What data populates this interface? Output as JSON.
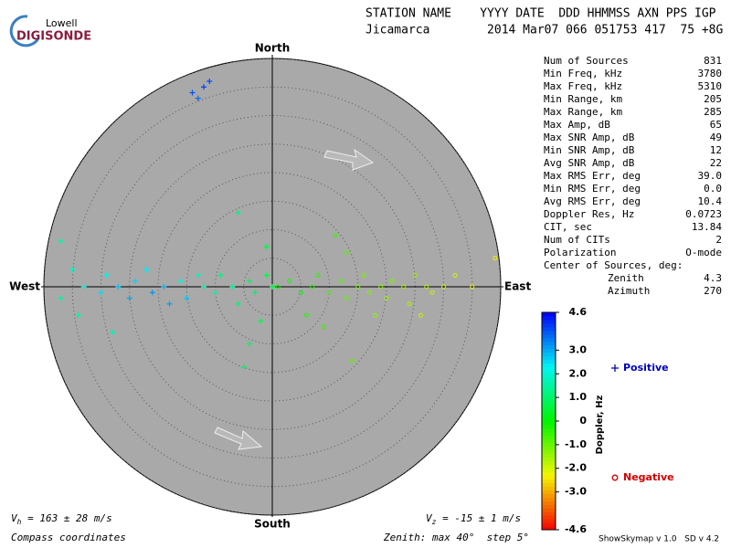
{
  "header": {
    "logo_top": "Lowell",
    "logo_bottom": "DIGISONDE",
    "columns_line": "STATION NAME    YYYY DATE  DDD HHMMSS AXN PPS IGP",
    "values_line": "Jicamarca        2014 Mar07 066 051753 417  75 +8G"
  },
  "stats": [
    [
      "Num of Sources",
      "831"
    ],
    [
      "Min Freq, kHz",
      "3780"
    ],
    [
      "Max Freq, kHz",
      "5310"
    ],
    [
      "Min Range, km",
      "205"
    ],
    [
      "Max Range, km",
      "285"
    ],
    [
      "Max Amp, dB",
      "65"
    ],
    [
      "Max SNR Amp, dB",
      "49"
    ],
    [
      "Min SNR Amp, dB",
      "12"
    ],
    [
      "Avg SNR Amp, dB",
      "22"
    ],
    [
      "Max RMS Err, deg",
      "39.0"
    ],
    [
      "Min RMS Err, deg",
      "0.0"
    ],
    [
      "Avg RMS Err, deg",
      "10.4"
    ],
    [
      "Doppler Res, Hz",
      "0.0723"
    ],
    [
      "CIT, sec",
      "13.84"
    ],
    [
      "Num of CITs",
      "2"
    ],
    [
      "Polarization",
      "O-mode"
    ]
  ],
  "center": {
    "title": "Center of Sources, deg:",
    "rows": [
      [
        "Zenith",
        "4.3"
      ],
      [
        "Azimuth",
        "270"
      ]
    ]
  },
  "footer": {
    "vh": [
      "V",
      "h",
      " = 163 ± 28 m/s"
    ],
    "vz": [
      "V",
      "z",
      " = -15 ± 1 m/s"
    ],
    "coords": "Compass coordinates",
    "zenith": "Zenith: max 40°  step 5°",
    "version": "ShowSkymap v 1.0   SD v 4.2"
  },
  "chart_data": {
    "type": "scatter",
    "compass": [
      "North",
      "East",
      "South",
      "West"
    ],
    "rlim": [
      0,
      40
    ],
    "rticks": [
      5,
      10,
      15,
      20,
      25,
      30,
      35,
      40
    ],
    "color_label": "Doppler, Hz",
    "clim": [
      -4.6,
      4.6
    ],
    "cticks": [
      4.6,
      {
        "value": 3,
        "label": "3.0"
      },
      {
        "value": 2,
        "label": "2.0"
      },
      {
        "value": 1,
        "label": "1.0"
      },
      0,
      {
        "value": -1,
        "label": "-1.0"
      },
      {
        "value": -2,
        "label": "-2.0"
      },
      {
        "value": -3,
        "label": "-3.0"
      },
      -4.6
    ],
    "series": [
      {
        "name": "Positive",
        "color": "#0000c0",
        "marker": "plus",
        "x": [
          -37,
          -35,
          -33,
          -30,
          -29,
          -27,
          -25,
          -24,
          -22,
          -21,
          -19,
          -18,
          -16,
          -15,
          -13,
          -12,
          -10,
          -9,
          -7,
          -6,
          -4,
          -3,
          -1,
          0,
          -2,
          -4,
          -5,
          -1,
          -6,
          -14,
          -12,
          -11,
          -13,
          -28,
          -37,
          -34
        ],
        "y": [
          -2,
          3,
          0,
          -1,
          2,
          0,
          -2,
          1,
          3,
          -1,
          0,
          -3,
          1,
          -2,
          2,
          0,
          -1,
          2,
          0,
          -3,
          1,
          -1,
          2,
          0,
          -6,
          -10,
          -14,
          7,
          13,
          34,
          35,
          36,
          33,
          -8,
          8,
          -5
        ],
        "doppler": [
          1.5,
          1.8,
          2.0,
          2.5,
          2.2,
          2.8,
          3.0,
          2.6,
          2.4,
          3.2,
          2.9,
          3.1,
          2.0,
          2.7,
          1.8,
          1.5,
          1.6,
          1.2,
          1.4,
          1.0,
          0.8,
          0.9,
          0.6,
          0.7,
          0.8,
          0.9,
          1.0,
          0.7,
          1.1,
          3.8,
          4.0,
          3.9,
          3.6,
          1.7,
          1.6,
          1.5
        ]
      },
      {
        "name": "Negative",
        "color": "#d00000",
        "marker": "circle",
        "x": [
          1,
          3,
          5,
          7,
          8,
          10,
          12,
          13,
          15,
          16,
          17,
          19,
          20,
          21,
          23,
          24,
          25,
          27,
          28,
          30,
          32,
          35,
          39,
          13,
          11,
          14,
          9,
          6,
          18,
          26
        ],
        "y": [
          0,
          1,
          -1,
          0,
          2,
          -1,
          1,
          -2,
          0,
          2,
          -1,
          0,
          -2,
          1,
          0,
          -3,
          2,
          0,
          -1,
          0,
          2,
          0,
          5,
          6,
          9,
          -13,
          -7,
          -5,
          -5,
          -5
        ],
        "doppler": [
          -0.1,
          -0.2,
          0.0,
          -0.3,
          -0.4,
          -0.6,
          -0.8,
          -0.9,
          -1.0,
          -1.1,
          -1.2,
          -1.3,
          -1.4,
          -1.2,
          -1.5,
          -1.6,
          -1.4,
          -1.7,
          -1.8,
          -1.9,
          -2.0,
          -2.2,
          -2.3,
          -0.8,
          -0.5,
          -0.9,
          -0.5,
          -0.3,
          -1.3,
          -1.8
        ]
      }
    ]
  }
}
